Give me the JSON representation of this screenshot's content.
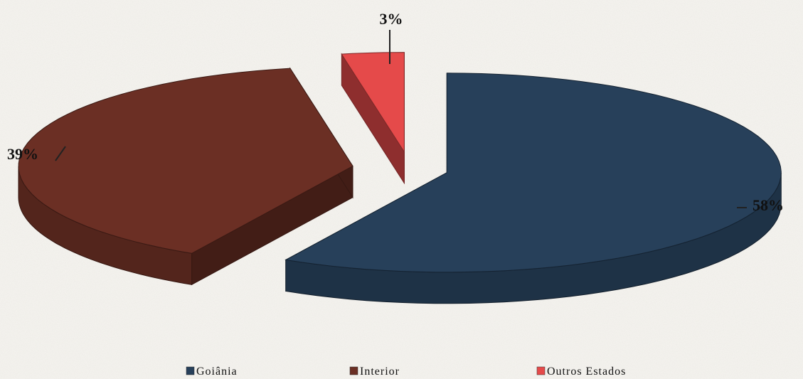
{
  "chart_data": {
    "type": "pie",
    "title": "",
    "three_d": true,
    "exploded": true,
    "legend_position": "bottom",
    "slices": [
      {
        "name": "Goiânia",
        "value": 58,
        "label": "58%",
        "color": "#27405a"
      },
      {
        "name": "Interior",
        "value": 39,
        "label": "39%",
        "color": "#6b2f24"
      },
      {
        "name": "Outros Estados",
        "value": 3,
        "label": "3%",
        "color": "#e54a4a"
      }
    ]
  }
}
